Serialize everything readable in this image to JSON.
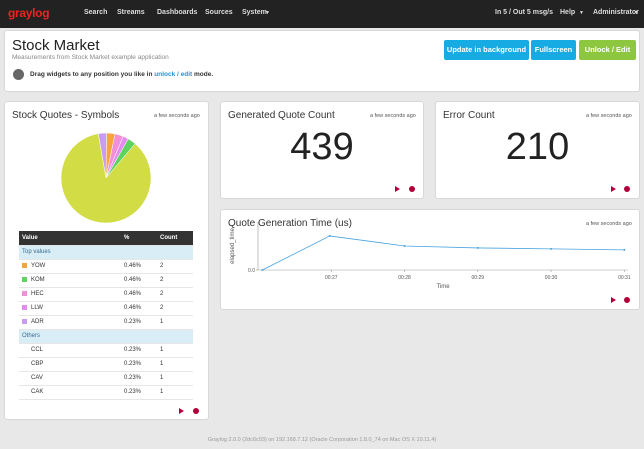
{
  "nav": {
    "brand": "graylog",
    "items": [
      "Search",
      "Streams",
      "Dashboards",
      "Sources",
      "System"
    ],
    "throughput": "In 5 / Out 5 msg/s",
    "help": "Help",
    "user": "Administrator"
  },
  "header": {
    "title": "Stock Market",
    "subtitle": "Measurements from Stock Market example application",
    "tip_before": "Drag widgets to any position you like in",
    "tip_link": "unlock / edit",
    "tip_after": "mode.",
    "buttons": [
      "Update in background",
      "Fullscreen",
      "Unlock / Edit"
    ]
  },
  "widgets": [
    {
      "title": "Stock Quotes - Symbols",
      "updated": "a few seconds ago",
      "chart_data": {
        "type": "pie",
        "values": [
          3,
          3,
          3,
          2,
          3,
          86
        ],
        "colors": [
          "#c99cf0",
          "#f7a340",
          "#f28fd6",
          "#e58bf0",
          "#5fd35f",
          "#d2dc44"
        ]
      },
      "table": {
        "header": [
          "Value",
          "%",
          "Count"
        ],
        "groups": [
          {
            "label": "Top values",
            "rows": [
              {
                "value": "YOW",
                "percent": "0.46%",
                "count": 2,
                "color": "#f7a340"
              },
              {
                "value": "KOM",
                "percent": "0.46%",
                "count": 2,
                "color": "#5fd35f"
              },
              {
                "value": "HEC",
                "percent": "0.46%",
                "count": 2,
                "color": "#f28fd6"
              },
              {
                "value": "LLW",
                "percent": "0.46%",
                "count": 2,
                "color": "#e58bf0"
              },
              {
                "value": "ADR",
                "percent": "0.23%",
                "count": 1,
                "color": "#c99cf0"
              }
            ]
          },
          {
            "label": "Others",
            "rows": [
              {
                "value": "CCL",
                "percent": "0.23%",
                "count": 1
              },
              {
                "value": "CBP",
                "percent": "0.23%",
                "count": 1
              },
              {
                "value": "CAV",
                "percent": "0.23%",
                "count": 1
              },
              {
                "value": "CAK",
                "percent": "0.23%",
                "count": 1
              }
            ]
          }
        ]
      }
    },
    {
      "title": "Generated Quote Count",
      "updated": "a few seconds ago",
      "value": 439
    },
    {
      "title": "Error Count",
      "updated": "a few seconds ago",
      "value": 210
    },
    {
      "title": "Quote Generation Time (us)",
      "updated": "a few seconds ago",
      "chart_data": {
        "type": "line",
        "y_label": "elapsed_time",
        "x_label": "Time",
        "color": "#4aa3df",
        "x": [
          26.06,
          26.98,
          28,
          29,
          30,
          31
        ],
        "series": [
          {
            "name": "elapsed_time",
            "values": [
              0,
              710,
              500,
              460,
              440,
              420
            ]
          }
        ],
        "xlim": [
          26,
          31.05
        ],
        "xticks": [
          {
            "value": 27,
            "label": "00:27"
          },
          {
            "value": 28,
            "label": "00:28"
          },
          {
            "value": 29,
            "label": "00:29"
          },
          {
            "value": 30,
            "label": "00:30"
          },
          {
            "value": 31,
            "label": "00:31"
          }
        ],
        "ylim": [
          0,
          1000
        ],
        "yticks": [
          {
            "value": 0,
            "label": "0.0"
          }
        ]
      }
    }
  ],
  "footer": "Graylog 2.0.0 (2dc6c03) on 192.168.7.12 (Oracle Corporation 1.8.0_74 on Mac OS X 10.11.4)"
}
